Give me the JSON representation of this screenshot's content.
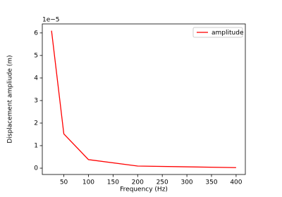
{
  "chart_data": {
    "type": "line",
    "x_label": "Frequency (Hz)",
    "y_label": "Displacement ampliude (m)",
    "y_offset_label": "1e−5",
    "x": [
      25,
      50,
      100,
      200,
      400
    ],
    "series": [
      {
        "name": "amplitude",
        "color": "#ff0000",
        "values": [
          6.1,
          1.52,
          0.38,
          0.095,
          0.024
        ]
      }
    ],
    "xlim": [
      6.25,
      418.75
    ],
    "xticks": [
      50,
      100,
      150,
      200,
      250,
      300,
      350,
      400
    ],
    "ylim": [
      -0.28,
      6.4
    ],
    "yticks": [
      0,
      1,
      2,
      3,
      4,
      5,
      6
    ],
    "legend": "upper-right",
    "grid": false
  }
}
